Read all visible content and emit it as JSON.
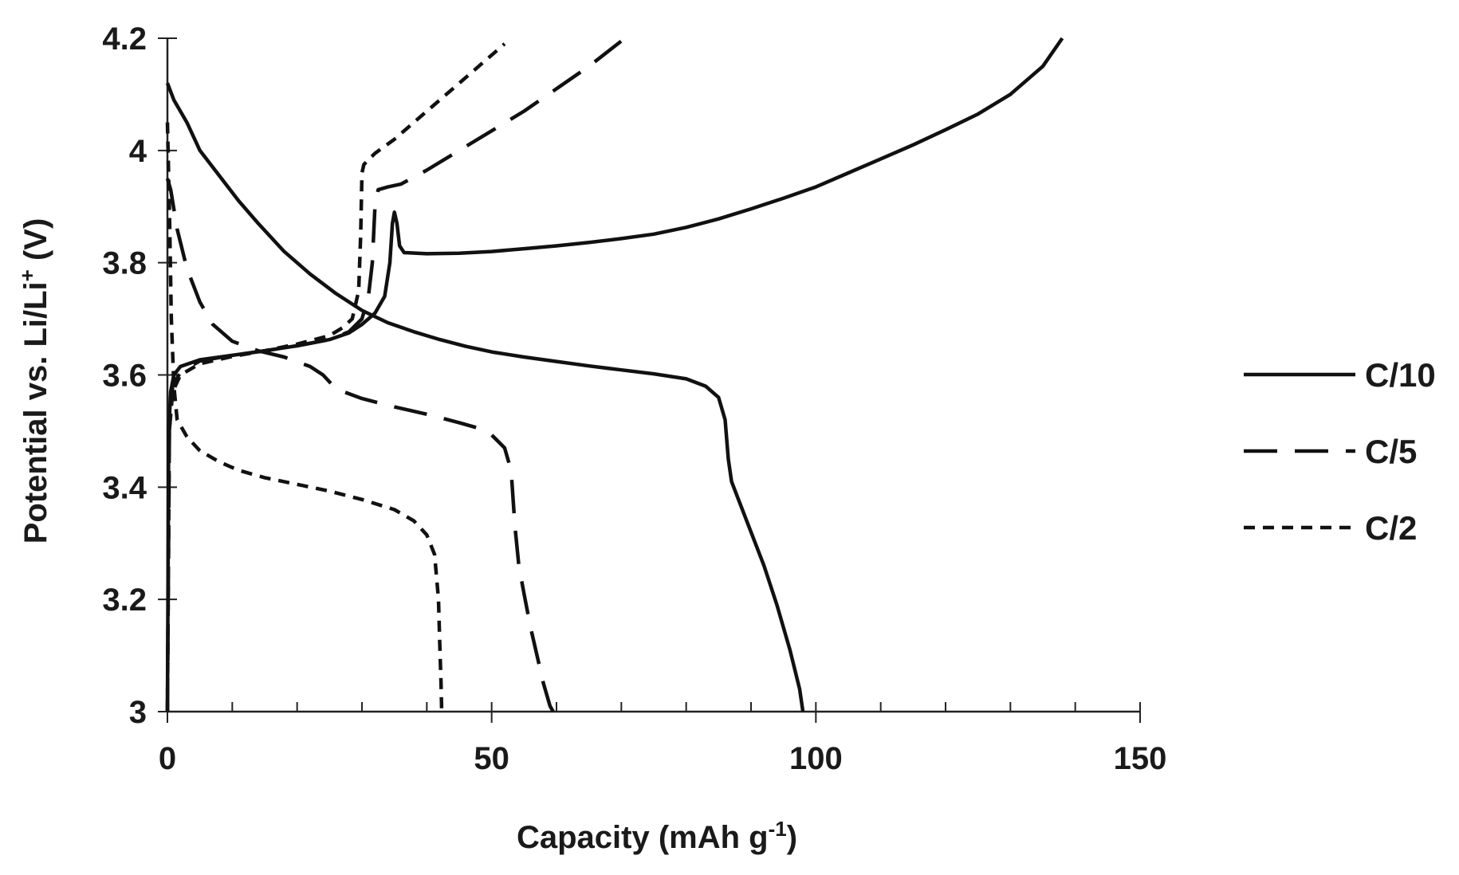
{
  "chart_data": {
    "type": "line",
    "title": "",
    "xlabel": "Capacity (mAh g",
    "xlabel_sup": "-1",
    "xlabel_close": ")",
    "ylabel": "Potential vs. Li/Li",
    "ylabel_sup": "+",
    "ylabel_close": " (V)",
    "xlim": [
      0,
      150
    ],
    "ylim": [
      3.0,
      4.2
    ],
    "x_ticks": [
      0,
      50,
      100,
      150
    ],
    "x_tick_labels": [
      "0",
      "50",
      "100",
      "150"
    ],
    "x_minor_step": 10,
    "y_ticks": [
      3.0,
      3.2,
      3.4,
      3.6,
      3.8,
      4.0,
      4.2
    ],
    "y_tick_labels": [
      "3",
      "3.2",
      "3.4",
      "3.6",
      "3.8",
      "4",
      "4.2"
    ],
    "grid": false,
    "legend_position": "right",
    "series": [
      {
        "name": "C/10",
        "dash": "solid",
        "charge": [
          [
            0,
            3.0
          ],
          [
            0.2,
            3.5
          ],
          [
            0.5,
            3.57
          ],
          [
            1,
            3.6
          ],
          [
            2,
            3.615
          ],
          [
            5,
            3.627
          ],
          [
            10,
            3.635
          ],
          [
            15,
            3.643
          ],
          [
            20,
            3.652
          ],
          [
            25,
            3.663
          ],
          [
            28,
            3.675
          ],
          [
            30,
            3.69
          ],
          [
            32,
            3.71
          ],
          [
            33.5,
            3.74
          ],
          [
            34.3,
            3.8
          ],
          [
            34.7,
            3.87
          ],
          [
            35.0,
            3.89
          ],
          [
            35.4,
            3.87
          ],
          [
            35.8,
            3.83
          ],
          [
            36.5,
            3.818
          ],
          [
            40,
            3.816
          ],
          [
            45,
            3.817
          ],
          [
            50,
            3.82
          ],
          [
            55,
            3.825
          ],
          [
            60,
            3.83
          ],
          [
            65,
            3.836
          ],
          [
            70,
            3.843
          ],
          [
            75,
            3.851
          ],
          [
            80,
            3.863
          ],
          [
            85,
            3.878
          ],
          [
            90,
            3.896
          ],
          [
            95,
            3.915
          ],
          [
            100,
            3.935
          ],
          [
            105,
            3.96
          ],
          [
            110,
            3.985
          ],
          [
            115,
            4.01
          ],
          [
            120,
            4.037
          ],
          [
            125,
            4.065
          ],
          [
            130,
            4.1
          ],
          [
            135,
            4.15
          ],
          [
            138,
            4.2
          ]
        ],
        "discharge": [
          [
            0,
            4.12
          ],
          [
            1,
            4.09
          ],
          [
            3,
            4.05
          ],
          [
            5,
            4.0
          ],
          [
            8,
            3.955
          ],
          [
            11,
            3.91
          ],
          [
            14,
            3.87
          ],
          [
            18,
            3.82
          ],
          [
            22,
            3.78
          ],
          [
            26,
            3.745
          ],
          [
            30,
            3.715
          ],
          [
            34,
            3.693
          ],
          [
            38,
            3.677
          ],
          [
            42,
            3.663
          ],
          [
            46,
            3.651
          ],
          [
            50,
            3.641
          ],
          [
            55,
            3.632
          ],
          [
            60,
            3.624
          ],
          [
            65,
            3.616
          ],
          [
            70,
            3.609
          ],
          [
            75,
            3.602
          ],
          [
            80,
            3.593
          ],
          [
            83,
            3.58
          ],
          [
            85,
            3.56
          ],
          [
            86,
            3.52
          ],
          [
            86.5,
            3.45
          ],
          [
            87,
            3.41
          ],
          [
            88,
            3.38
          ],
          [
            90,
            3.32
          ],
          [
            92,
            3.26
          ],
          [
            94,
            3.19
          ],
          [
            96,
            3.11
          ],
          [
            97.5,
            3.04
          ],
          [
            98,
            3.0
          ]
        ]
      },
      {
        "name": "C/5",
        "dash": "long-dash",
        "charge": [
          [
            0,
            3.0
          ],
          [
            0.3,
            3.5
          ],
          [
            0.8,
            3.58
          ],
          [
            2,
            3.605
          ],
          [
            5,
            3.625
          ],
          [
            10,
            3.635
          ],
          [
            15,
            3.643
          ],
          [
            20,
            3.652
          ],
          [
            25,
            3.663
          ],
          [
            28,
            3.677
          ],
          [
            30,
            3.7
          ],
          [
            31,
            3.74
          ],
          [
            31.6,
            3.8
          ],
          [
            32.0,
            3.9
          ],
          [
            32.5,
            3.93
          ],
          [
            34,
            3.935
          ],
          [
            36,
            3.94
          ],
          [
            40,
            3.965
          ],
          [
            45,
            4.0
          ],
          [
            50,
            4.035
          ],
          [
            55,
            4.07
          ],
          [
            60,
            4.11
          ],
          [
            65,
            4.15
          ],
          [
            70,
            4.195
          ]
        ],
        "discharge": [
          [
            0,
            3.95
          ],
          [
            0.5,
            3.93
          ],
          [
            1.5,
            3.86
          ],
          [
            3,
            3.79
          ],
          [
            5,
            3.73
          ],
          [
            7,
            3.69
          ],
          [
            10,
            3.66
          ],
          [
            14,
            3.643
          ],
          [
            18,
            3.632
          ],
          [
            22,
            3.615
          ],
          [
            24,
            3.6
          ],
          [
            26,
            3.575
          ],
          [
            30,
            3.558
          ],
          [
            35,
            3.543
          ],
          [
            40,
            3.53
          ],
          [
            45,
            3.515
          ],
          [
            48,
            3.505
          ],
          [
            50,
            3.493
          ],
          [
            52,
            3.47
          ],
          [
            53,
            3.43
          ],
          [
            53.6,
            3.33
          ],
          [
            54.2,
            3.26
          ],
          [
            55,
            3.21
          ],
          [
            56,
            3.15
          ],
          [
            57,
            3.1
          ],
          [
            58,
            3.05
          ],
          [
            59,
            3.01
          ],
          [
            59.5,
            3.0
          ]
        ]
      },
      {
        "name": "C/2",
        "dash": "short-dash",
        "charge": [
          [
            0,
            3.0
          ],
          [
            0.3,
            3.5
          ],
          [
            0.8,
            3.57
          ],
          [
            2,
            3.6
          ],
          [
            5,
            3.62
          ],
          [
            10,
            3.633
          ],
          [
            15,
            3.643
          ],
          [
            20,
            3.655
          ],
          [
            25,
            3.67
          ],
          [
            27,
            3.684
          ],
          [
            28.5,
            3.7
          ],
          [
            29.5,
            3.75
          ],
          [
            29.8,
            3.85
          ],
          [
            30.0,
            3.96
          ],
          [
            30.3,
            3.975
          ],
          [
            32,
            3.995
          ],
          [
            35,
            4.02
          ],
          [
            38,
            4.05
          ],
          [
            41,
            4.08
          ],
          [
            44,
            4.11
          ],
          [
            47,
            4.14
          ],
          [
            49,
            4.16
          ],
          [
            51,
            4.18
          ],
          [
            52,
            4.19
          ]
        ],
        "discharge": [
          [
            0,
            4.05
          ],
          [
            0.3,
            3.9
          ],
          [
            0.6,
            3.7
          ],
          [
            1,
            3.58
          ],
          [
            1.5,
            3.52
          ],
          [
            3,
            3.49
          ],
          [
            5,
            3.465
          ],
          [
            8,
            3.445
          ],
          [
            11,
            3.43
          ],
          [
            15,
            3.417
          ],
          [
            20,
            3.405
          ],
          [
            25,
            3.393
          ],
          [
            30,
            3.378
          ],
          [
            35,
            3.36
          ],
          [
            38,
            3.34
          ],
          [
            40,
            3.315
          ],
          [
            41.2,
            3.28
          ],
          [
            41.8,
            3.2
          ],
          [
            42.0,
            3.12
          ],
          [
            42.2,
            3.05
          ],
          [
            42.3,
            3.0
          ]
        ]
      }
    ]
  }
}
